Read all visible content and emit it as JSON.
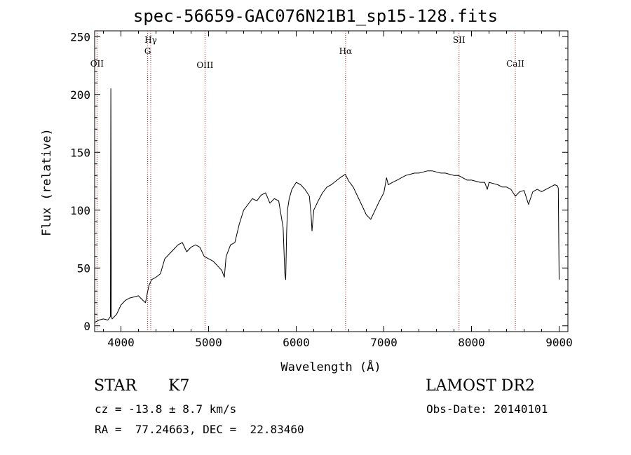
{
  "title": "spec-56659-GAC076N21B1_sp15-128.fits",
  "info": {
    "object_class": "STAR",
    "subclass": "K7",
    "survey": "LAMOST DR2",
    "redshift": "cz = -13.8 ± 8.7 km/s",
    "obs_date": "Obs-Date: 20140101",
    "coords": "RA =  77.24663, DEC =  22.83460"
  },
  "colors": {
    "spectrum": "#000000",
    "line_marker": "#b22222",
    "axis": "#000000"
  },
  "chart_data": {
    "type": "line",
    "xlabel": "Wavelength (Å)",
    "ylabel": "Flux (relative)",
    "xlim": [
      3700,
      9100
    ],
    "ylim": [
      -5,
      255
    ],
    "xticks": [
      4000,
      5000,
      6000,
      7000,
      8000,
      9000
    ],
    "yticks": [
      0,
      50,
      100,
      150,
      200,
      250
    ],
    "grid": false,
    "series": [
      {
        "x": [
          3700,
          3750,
          3800,
          3850,
          3880,
          3885,
          3890,
          3895,
          3900,
          3950,
          4000,
          4050,
          4100,
          4150,
          4200,
          4250,
          4280,
          4300,
          4320,
          4350,
          4400,
          4450,
          4500,
          4550,
          4600,
          4650,
          4700,
          4750,
          4800,
          4850,
          4900,
          4950,
          5000,
          5050,
          5100,
          5150,
          5180,
          5200,
          5250,
          5300,
          5350,
          5400,
          5450,
          5500,
          5550,
          5600,
          5650,
          5700,
          5750,
          5800,
          5850,
          5870,
          5880,
          5890,
          5900,
          5920,
          5950,
          6000,
          6050,
          6100,
          6150,
          6170,
          6180,
          6200,
          6250,
          6300,
          6350,
          6400,
          6450,
          6500,
          6540,
          6560,
          6580,
          6600,
          6650,
          6700,
          6750,
          6800,
          6850,
          6900,
          6950,
          7000,
          7030,
          7050,
          7100,
          7150,
          7200,
          7250,
          7300,
          7350,
          7400,
          7450,
          7500,
          7550,
          7600,
          7650,
          7700,
          7750,
          7800,
          7850,
          7900,
          7950,
          8000,
          8050,
          8100,
          8150,
          8180,
          8200,
          8250,
          8300,
          8350,
          8400,
          8450,
          8500,
          8550,
          8600,
          8650,
          8700,
          8750,
          8800,
          8850,
          8900,
          8950,
          8980,
          8990,
          9000
        ],
        "values": [
          3,
          5,
          6,
          5,
          8,
          205,
          10,
          7,
          6,
          10,
          18,
          22,
          24,
          25,
          26,
          22,
          20,
          28,
          35,
          40,
          42,
          45,
          58,
          62,
          66,
          70,
          72,
          64,
          68,
          70,
          68,
          60,
          58,
          56,
          52,
          48,
          42,
          60,
          70,
          72,
          88,
          100,
          105,
          110,
          108,
          113,
          115,
          106,
          110,
          108,
          85,
          45,
          40,
          80,
          100,
          110,
          118,
          124,
          122,
          118,
          112,
          95,
          82,
          100,
          108,
          115,
          120,
          122,
          125,
          128,
          130,
          131,
          128,
          125,
          120,
          112,
          104,
          96,
          92,
          100,
          108,
          115,
          128,
          122,
          124,
          126,
          128,
          130,
          131,
          132,
          132,
          133,
          134,
          134,
          133,
          132,
          132,
          131,
          130,
          130,
          128,
          126,
          126,
          125,
          124,
          124,
          118,
          124,
          123,
          122,
          120,
          120,
          118,
          112,
          116,
          117,
          105,
          116,
          118,
          116,
          118,
          120,
          122,
          121,
          119,
          40
        ]
      }
    ],
    "line_markers": [
      {
        "label": "OII",
        "wavelength": 3727
      },
      {
        "label": "Hγ",
        "wavelength": 4340
      },
      {
        "label": "G",
        "wavelength": 4305
      },
      {
        "label": "OIII",
        "wavelength": 4959
      },
      {
        "label": "Hα",
        "wavelength": 6563
      },
      {
        "label": "SII",
        "wavelength": 7858
      },
      {
        "label": "CaII",
        "wavelength": 8500
      }
    ]
  }
}
